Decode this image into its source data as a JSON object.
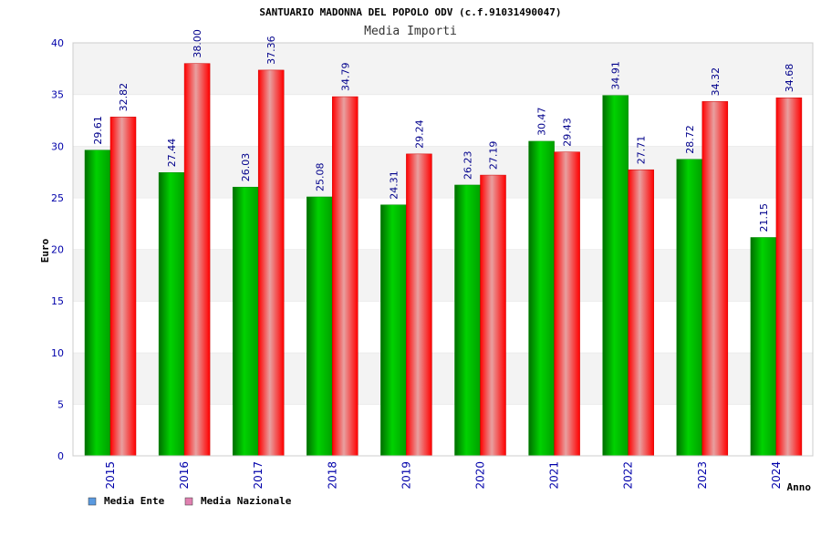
{
  "chart_data": {
    "type": "bar",
    "title": "SANTUARIO MADONNA DEL POPOLO ODV (c.f.91031490047)",
    "subtitle": "Media Importi",
    "xlabel": "Anno",
    "ylabel": "Euro",
    "ylim": [
      0,
      40
    ],
    "yticks": [
      0,
      5,
      10,
      15,
      20,
      25,
      30,
      35,
      40
    ],
    "categories": [
      "2015",
      "2016",
      "2017",
      "2018",
      "2019",
      "2020",
      "2021",
      "2022",
      "2023",
      "2024"
    ],
    "series": [
      {
        "name": "Media Ente",
        "values": [
          29.61,
          27.44,
          26.03,
          25.08,
          24.31,
          26.23,
          30.47,
          34.91,
          28.72,
          21.15
        ],
        "labels": [
          "29.61",
          "27.44",
          "26.03",
          "25.08",
          "24.31",
          "26.23",
          "30.47",
          "34.91",
          "28.72",
          "21.15"
        ]
      },
      {
        "name": "Media Nazionale",
        "values": [
          32.82,
          38.0,
          37.36,
          34.79,
          29.24,
          27.19,
          29.43,
          27.71,
          34.32,
          34.68
        ],
        "labels": [
          "32.82",
          "38.00",
          "37.36",
          "34.79",
          "29.24",
          "27.19",
          "29.43",
          "27.71",
          "34.32",
          "34.68"
        ]
      }
    ],
    "grid": true,
    "legend_position": "bottom-left",
    "colors": {
      "ente_bar": "#00b400",
      "nazionale_bar": "#ff0000",
      "ente_legend": "#5a9ae0",
      "nazionale_legend": "#e080b0",
      "axis_text": "#0000aa",
      "band": "#f3f3f3"
    }
  }
}
